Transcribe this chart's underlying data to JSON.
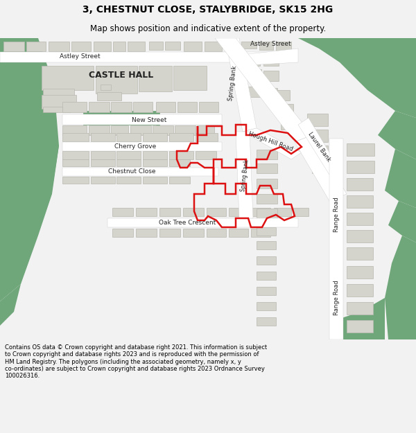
{
  "title": "3, CHESTNUT CLOSE, STALYBRIDGE, SK15 2HG",
  "subtitle": "Map shows position and indicative extent of the property.",
  "footer": "Contains OS data © Crown copyright and database right 2021. This information is subject\nto Crown copyright and database rights 2023 and is reproduced with the permission of\nHM Land Registry. The polygons (including the associated geometry, namely x, y\nco-ordinates) are subject to Crown copyright and database rights 2023 Ordnance Survey\n100026316.",
  "bg_color": "#f2f2f2",
  "map_bg": "#f0efe8",
  "green_color": "#6fa67a",
  "building_color": "#d4d4cc",
  "building_edge": "#b8b8b0",
  "road_color": "#ffffff",
  "red_color": "#dd1111",
  "text_color": "#333333"
}
